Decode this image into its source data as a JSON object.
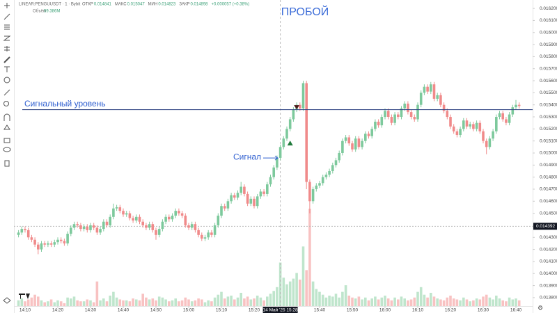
{
  "header": {
    "symbol": "LINEAR:PENGUUSDT · 1 · Bybit",
    "ohlc": [
      [
        "ОТКР",
        "0.014841"
      ],
      [
        "МАКС",
        "0.015047"
      ],
      [
        "МИН",
        "0.014823"
      ],
      [
        "ЗАКР",
        "0.014898"
      ]
    ],
    "change": "+0.000057 (+0.38%)",
    "volume_label": "Объём",
    "volume_value": "59.386M"
  },
  "chart_data": {
    "type": "candlestick",
    "title": "ПРОБОЙ",
    "x": [
      "14:08",
      "14:09",
      "14:10",
      "14:11",
      "14:12",
      "14:13",
      "14:14",
      "14:15",
      "14:16",
      "14:17",
      "14:18",
      "14:19",
      "14:20",
      "14:21",
      "14:22",
      "14:23",
      "14:24",
      "14:25",
      "14:26",
      "14:27",
      "14:28",
      "14:29",
      "14:30",
      "14:31",
      "14:32",
      "14:33",
      "14:34",
      "14:35",
      "14:36",
      "14:37",
      "14:38",
      "14:39",
      "14:40",
      "14:41",
      "14:42",
      "14:43",
      "14:44",
      "14:45",
      "14:46",
      "14:47",
      "14:48",
      "14:49",
      "14:50",
      "14:51",
      "14:52",
      "14:53",
      "14:54",
      "14:55",
      "14:56",
      "14:57",
      "14:58",
      "14:59",
      "15:00",
      "15:01",
      "15:02",
      "15:03",
      "15:04",
      "15:05",
      "15:06",
      "15:07",
      "15:08",
      "15:09",
      "15:10",
      "15:11",
      "15:12",
      "15:13",
      "15:14",
      "15:15",
      "15:16",
      "15:17",
      "15:18",
      "15:19",
      "15:20",
      "15:21",
      "15:22",
      "15:23",
      "15:24",
      "15:25",
      "15:26",
      "15:27",
      "15:28",
      "15:29",
      "15:30",
      "15:31",
      "15:32",
      "15:33",
      "15:34",
      "15:35",
      "15:36",
      "15:37",
      "15:38",
      "15:39",
      "15:40",
      "15:41",
      "15:42",
      "15:43",
      "15:44",
      "15:45",
      "15:46",
      "15:47",
      "15:48",
      "15:49",
      "15:50",
      "15:51",
      "15:52",
      "15:53",
      "15:54",
      "15:55",
      "15:56",
      "15:57",
      "15:58",
      "15:59",
      "16:00",
      "16:01",
      "16:02",
      "16:03",
      "16:04",
      "16:05",
      "16:06",
      "16:07",
      "16:08",
      "16:09",
      "16:10",
      "16:11",
      "16:12",
      "16:13",
      "16:14",
      "16:15",
      "16:16",
      "16:17",
      "16:18",
      "16:19",
      "16:20",
      "16:21",
      "16:22",
      "16:23",
      "16:24",
      "16:25",
      "16:26",
      "16:27",
      "16:28",
      "16:29",
      "16:30",
      "16:31",
      "16:32",
      "16:33",
      "16:34",
      "16:35",
      "16:36",
      "16:37",
      "16:38",
      "16:39",
      "16:40",
      "16:41"
    ],
    "open": [
      0.01432,
      0.01434,
      0.01437,
      0.01436,
      0.0143,
      0.01428,
      0.01424,
      0.0142,
      0.01425,
      0.01424,
      0.01425,
      0.01424,
      0.01426,
      0.01428,
      0.01427,
      0.01425,
      0.01433,
      0.01438,
      0.01441,
      0.0144,
      0.01437,
      0.01439,
      0.01436,
      0.0144,
      0.01438,
      0.01434,
      0.01437,
      0.01443,
      0.0144,
      0.01447,
      0.01454,
      0.01455,
      0.01452,
      0.01449,
      0.0145,
      0.01446,
      0.01444,
      0.01447,
      0.01443,
      0.0144,
      0.01438,
      0.01441,
      0.01436,
      0.01432,
      0.01437,
      0.01443,
      0.01447,
      0.01445,
      0.01448,
      0.01452,
      0.0145,
      0.01448,
      0.0144,
      0.01438,
      0.01441,
      0.01436,
      0.01432,
      0.01429,
      0.0143,
      0.01434,
      0.01432,
      0.0144,
      0.01448,
      0.01456,
      0.01454,
      0.0146,
      0.01465,
      0.01463,
      0.01467,
      0.01472,
      0.01466,
      0.01458,
      0.01462,
      0.01456,
      0.01464,
      0.01468,
      0.01466,
      0.01474,
      0.0148,
      0.01488,
      0.01496,
      0.01505,
      0.01512,
      0.0152,
      0.01528,
      0.01536,
      0.0154,
      0.01537,
      0.01558,
      0.01476,
      0.0146,
      0.0147,
      0.01473,
      0.01475,
      0.0148,
      0.01482,
      0.01485,
      0.0149,
      0.01494,
      0.015,
      0.0151,
      0.01513,
      0.01508,
      0.01503,
      0.01512,
      0.01505,
      0.0151,
      0.01516,
      0.01514,
      0.0152,
      0.01526,
      0.01523,
      0.0153,
      0.01535,
      0.0153,
      0.01525,
      0.01532,
      0.0153,
      0.01537,
      0.01541,
      0.01534,
      0.0153,
      0.01528,
      0.0154,
      0.0155,
      0.01555,
      0.01551,
      0.01557,
      0.01545,
      0.01548,
      0.0154,
      0.01535,
      0.0153,
      0.01522,
      0.01518,
      0.01515,
      0.0152,
      0.01527,
      0.01522,
      0.01524,
      0.0152,
      0.01525,
      0.01518,
      0.0151,
      0.01505,
      0.01512,
      0.01518,
      0.0153,
      0.01533,
      0.01528,
      0.01525,
      0.01532,
      0.01538,
      0.0154
    ],
    "high": [
      0.01436,
      0.01439,
      0.01439,
      0.01438,
      0.01432,
      0.0143,
      0.01426,
      0.01427,
      0.01427,
      0.01427,
      0.01427,
      0.01428,
      0.0143,
      0.0143,
      0.01429,
      0.01435,
      0.0144,
      0.01443,
      0.01443,
      0.01442,
      0.01441,
      0.01441,
      0.01442,
      0.01442,
      0.0144,
      0.01439,
      0.01445,
      0.01445,
      0.01449,
      0.01458,
      0.01457,
      0.01457,
      0.01454,
      0.01452,
      0.01452,
      0.01448,
      0.01449,
      0.01449,
      0.01445,
      0.01442,
      0.01443,
      0.01443,
      0.01438,
      0.01439,
      0.01445,
      0.01449,
      0.01449,
      0.0145,
      0.01454,
      0.01454,
      0.01452,
      0.0145,
      0.01442,
      0.01443,
      0.01443,
      0.01438,
      0.01434,
      0.01432,
      0.01436,
      0.01436,
      0.01442,
      0.0145,
      0.01458,
      0.01458,
      0.01462,
      0.01467,
      0.01467,
      0.01469,
      0.01476,
      0.01474,
      0.01468,
      0.01464,
      0.01464,
      0.01466,
      0.0147,
      0.0147,
      0.01476,
      0.01482,
      0.0149,
      0.01498,
      0.01507,
      0.01514,
      0.01522,
      0.0153,
      0.01538,
      0.01542,
      0.01542,
      0.0156,
      0.0156,
      0.01478,
      0.01472,
      0.01475,
      0.01477,
      0.01482,
      0.01484,
      0.01487,
      0.01492,
      0.01496,
      0.01502,
      0.01512,
      0.01515,
      0.01515,
      0.0151,
      0.01514,
      0.01514,
      0.01512,
      0.01518,
      0.01518,
      0.01522,
      0.01528,
      0.01528,
      0.01532,
      0.01537,
      0.01537,
      0.01532,
      0.01534,
      0.01534,
      0.01539,
      0.01543,
      0.01543,
      0.01536,
      0.01532,
      0.01542,
      0.01552,
      0.01557,
      0.01557,
      0.01559,
      0.01559,
      0.0155,
      0.0155,
      0.01542,
      0.01537,
      0.01532,
      0.01524,
      0.0152,
      0.01522,
      0.01529,
      0.01529,
      0.01526,
      0.01526,
      0.01527,
      0.01527,
      0.0152,
      0.01512,
      0.01514,
      0.0152,
      0.01532,
      0.01535,
      0.01535,
      0.0153,
      0.01534,
      0.0154,
      0.01544,
      0.01542
    ],
    "low": [
      0.0143,
      0.01432,
      0.01434,
      0.01428,
      0.01426,
      0.01422,
      0.01416,
      0.01418,
      0.01422,
      0.01422,
      0.01422,
      0.01422,
      0.01424,
      0.01425,
      0.01423,
      0.01423,
      0.01431,
      0.01436,
      0.01438,
      0.01435,
      0.01435,
      0.01434,
      0.01434,
      0.01436,
      0.01432,
      0.01432,
      0.01435,
      0.01438,
      0.01438,
      0.01445,
      0.01452,
      0.0145,
      0.01447,
      0.01447,
      0.01444,
      0.01442,
      0.01442,
      0.01441,
      0.01438,
      0.01436,
      0.01436,
      0.01434,
      0.01428,
      0.0143,
      0.01435,
      0.01441,
      0.01443,
      0.01443,
      0.01446,
      0.01448,
      0.01446,
      0.01438,
      0.01436,
      0.01436,
      0.01434,
      0.0143,
      0.01427,
      0.01427,
      0.01428,
      0.0143,
      0.0143,
      0.01438,
      0.01446,
      0.01452,
      0.01452,
      0.01458,
      0.01461,
      0.01461,
      0.01465,
      0.01464,
      0.01456,
      0.01456,
      0.01454,
      0.01454,
      0.01462,
      0.01464,
      0.01464,
      0.01472,
      0.01478,
      0.01486,
      0.01494,
      0.01503,
      0.0151,
      0.01518,
      0.01526,
      0.01534,
      0.01535,
      0.01535,
      0.0147,
      0.0145,
      0.01458,
      0.01468,
      0.01471,
      0.01473,
      0.01478,
      0.0148,
      0.01483,
      0.01488,
      0.01492,
      0.01498,
      0.01508,
      0.01506,
      0.01501,
      0.01501,
      0.01503,
      0.01503,
      0.01508,
      0.01512,
      0.01512,
      0.01518,
      0.01521,
      0.01521,
      0.01528,
      0.01528,
      0.01523,
      0.01523,
      0.01528,
      0.01528,
      0.01535,
      0.01532,
      0.01528,
      0.01526,
      0.01526,
      0.01538,
      0.01548,
      0.01549,
      0.01549,
      0.01543,
      0.01543,
      0.01538,
      0.01533,
      0.01528,
      0.0152,
      0.01516,
      0.01513,
      0.01513,
      0.01518,
      0.0152,
      0.0152,
      0.01518,
      0.01518,
      0.01516,
      0.01508,
      0.01499,
      0.01503,
      0.0151,
      0.01516,
      0.01528,
      0.01526,
      0.01523,
      0.01523,
      0.0153,
      0.01536,
      0.01537
    ],
    "close": [
      0.01434,
      0.01437,
      0.01436,
      0.0143,
      0.01428,
      0.01424,
      0.0142,
      0.01425,
      0.01424,
      0.01425,
      0.01424,
      0.01426,
      0.01428,
      0.01427,
      0.01425,
      0.01433,
      0.01438,
      0.01441,
      0.0144,
      0.01437,
      0.01439,
      0.01436,
      0.0144,
      0.01438,
      0.01434,
      0.01437,
      0.01443,
      0.0144,
      0.01447,
      0.01454,
      0.01455,
      0.01452,
      0.01449,
      0.0145,
      0.01446,
      0.01444,
      0.01447,
      0.01443,
      0.0144,
      0.01438,
      0.01441,
      0.01436,
      0.01432,
      0.01437,
      0.01443,
      0.01447,
      0.01445,
      0.01448,
      0.01452,
      0.0145,
      0.01448,
      0.0144,
      0.01438,
      0.01441,
      0.01436,
      0.01432,
      0.01429,
      0.0143,
      0.01434,
      0.01432,
      0.0144,
      0.01448,
      0.01456,
      0.01454,
      0.0146,
      0.01465,
      0.01463,
      0.01467,
      0.01472,
      0.01466,
      0.01458,
      0.01462,
      0.01456,
      0.01464,
      0.01468,
      0.01466,
      0.01474,
      0.0148,
      0.01488,
      0.01496,
      0.01505,
      0.01512,
      0.0152,
      0.01528,
      0.01536,
      0.0154,
      0.01537,
      0.01558,
      0.01476,
      0.0146,
      0.0147,
      0.01473,
      0.01475,
      0.0148,
      0.01482,
      0.01485,
      0.0149,
      0.01494,
      0.015,
      0.0151,
      0.01513,
      0.01508,
      0.01503,
      0.01512,
      0.01505,
      0.0151,
      0.01516,
      0.01514,
      0.0152,
      0.01526,
      0.01523,
      0.0153,
      0.01535,
      0.0153,
      0.01525,
      0.01532,
      0.0153,
      0.01537,
      0.01541,
      0.01534,
      0.0153,
      0.01528,
      0.0154,
      0.0155,
      0.01555,
      0.01551,
      0.01557,
      0.01545,
      0.01548,
      0.0154,
      0.01535,
      0.0153,
      0.01522,
      0.01518,
      0.01515,
      0.0152,
      0.01527,
      0.01522,
      0.01524,
      0.0152,
      0.01525,
      0.01518,
      0.0151,
      0.01505,
      0.01512,
      0.01518,
      0.0153,
      0.01533,
      0.01528,
      0.01525,
      0.01532,
      0.01538,
      0.0154,
      0.01539
    ],
    "volume": [
      60,
      80,
      50,
      70,
      90,
      120,
      100,
      60,
      40,
      50,
      70,
      40,
      60,
      50,
      30,
      90,
      80,
      100,
      60,
      50,
      50,
      70,
      60,
      40,
      260,
      60,
      80,
      50,
      110,
      150,
      90,
      70,
      60,
      60,
      50,
      80,
      70,
      60,
      130,
      90,
      70,
      80,
      60,
      100,
      90,
      70,
      50,
      60,
      80,
      50,
      60,
      90,
      70,
      50,
      60,
      80,
      70,
      40,
      60,
      50,
      90,
      120,
      150,
      80,
      100,
      110,
      70,
      90,
      140,
      80,
      100,
      70,
      80,
      110,
      90,
      60,
      100,
      130,
      160,
      200,
      460,
      300,
      230,
      260,
      290,
      350,
      280,
      630,
      380,
      1030,
      260,
      180,
      150,
      120,
      90,
      110,
      100,
      130,
      90,
      150,
      220,
      110,
      90,
      80,
      100,
      70,
      90,
      60,
      80,
      100,
      70,
      90,
      110,
      80,
      60,
      90,
      70,
      100,
      80,
      60,
      70,
      90,
      150,
      200,
      120,
      90,
      140,
      100,
      80,
      70,
      60,
      90,
      110,
      80,
      70,
      60,
      90,
      70,
      50,
      60,
      80,
      70,
      100,
      120,
      90,
      70,
      110,
      80,
      60,
      50,
      90,
      70,
      80,
      60
    ],
    "ylim": [
      0.01373,
      0.01627
    ],
    "yticks": [
      {
        "value": 0.0138,
        "label": "0.013800"
      },
      {
        "value": 0.0139,
        "label": "0.013900"
      },
      {
        "value": 0.014,
        "label": "0.014000"
      },
      {
        "value": 0.0141,
        "label": "0.014100"
      },
      {
        "value": 0.0142,
        "label": "0.014200"
      },
      {
        "value": 0.0143,
        "label": "0.014300"
      },
      {
        "value": 0.0145,
        "label": "0.014500"
      },
      {
        "value": 0.0146,
        "label": "0.014600"
      },
      {
        "value": 0.0147,
        "label": "0.014700"
      },
      {
        "value": 0.0148,
        "label": "0.014800"
      },
      {
        "value": 0.0149,
        "label": "0.014900"
      },
      {
        "value": 0.015,
        "label": "0.015000"
      },
      {
        "value": 0.0151,
        "label": "0.015100"
      },
      {
        "value": 0.0152,
        "label": "0.015200"
      },
      {
        "value": 0.0153,
        "label": "0.015300"
      },
      {
        "value": 0.0154,
        "label": "0.015400"
      },
      {
        "value": 0.0155,
        "label": "0.015500"
      },
      {
        "value": 0.0156,
        "label": "0.015600"
      },
      {
        "value": 0.0157,
        "label": "0.015700"
      },
      {
        "value": 0.0158,
        "label": "0.015800"
      },
      {
        "value": 0.0159,
        "label": "0.015900"
      },
      {
        "value": 0.016,
        "label": "0.016000"
      },
      {
        "value": 0.0161,
        "label": "0.016100"
      },
      {
        "value": 0.0162,
        "label": "0.016200"
      }
    ],
    "xticks": [
      "14:10",
      "14:20",
      "14:30",
      "14:40",
      "14:50",
      "15:00",
      "15:10",
      "15:20",
      "15:40",
      "15:50",
      "16:00",
      "16:10",
      "16:20",
      "16:30",
      "16:40"
    ],
    "grid": false,
    "up_color": "#7dc99c",
    "down_color": "#f08a8a",
    "up_volume_color": "#bfe5cc",
    "down_volume_color": "#f8c2c2",
    "last_price": 0.014392,
    "crosshair": {
      "x": "15:28",
      "label": "14 Май '25  15:28"
    },
    "signal_level": {
      "value": 0.01536,
      "label": "Сигнальный уровень",
      "color": "#2c4080"
    },
    "buy_marker": {
      "x": "15:31",
      "value": 0.01508,
      "label": "Сигнал"
    },
    "sell_marker": {
      "x": "15:33",
      "value": 0.01538
    }
  }
}
